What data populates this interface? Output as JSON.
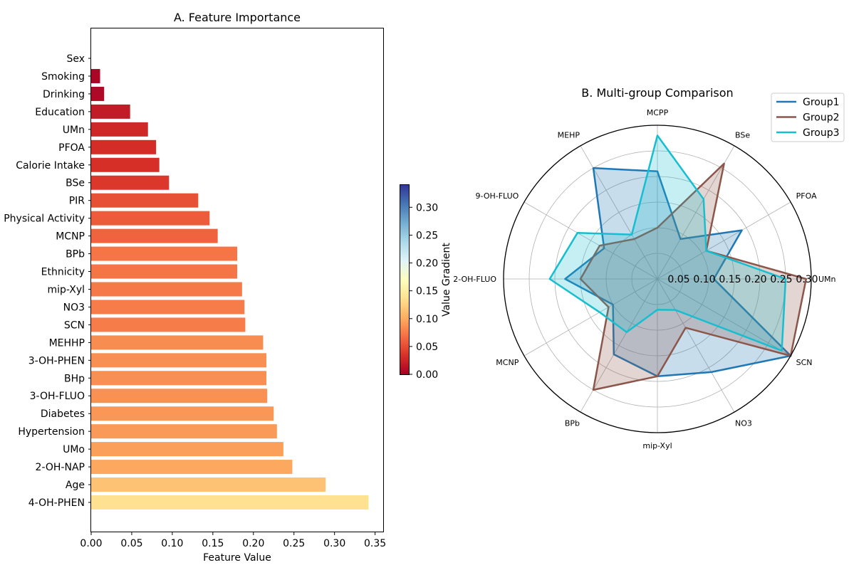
{
  "chart_data": [
    {
      "type": "bar",
      "orientation": "horizontal",
      "title": "A. Feature Importance",
      "xlabel": "Feature Value",
      "ylabel": "",
      "xlim": [
        0,
        0.36
      ],
      "xticks": [
        0.0,
        0.05,
        0.1,
        0.15,
        0.2,
        0.25,
        0.3,
        0.35
      ],
      "xtick_labels": [
        "0.00",
        "0.05",
        "0.10",
        "0.15",
        "0.20",
        "0.25",
        "0.30",
        "0.35"
      ],
      "categories": [
        "Sex",
        "Smoking",
        "Drinking",
        "Education",
        "UMn",
        "PFOA",
        "Calorie Intake",
        "BSe",
        "PIR",
        "Physical Activity",
        "MCNP",
        "BPb",
        "Ethnicity",
        "mip-Xyl",
        "NO3",
        "SCN",
        "MEHHP",
        "3-OH-PHEN",
        "BHp",
        "3-OH-FLUO",
        "Diabetes",
        "Hypertension",
        "UMo",
        "2-OH-NAP",
        "Age",
        "4-OH-PHEN"
      ],
      "values": [
        0.0,
        0.011,
        0.016,
        0.048,
        0.07,
        0.08,
        0.084,
        0.096,
        0.132,
        0.146,
        0.156,
        0.18,
        0.18,
        0.186,
        0.189,
        0.19,
        0.212,
        0.216,
        0.216,
        0.217,
        0.225,
        0.229,
        0.237,
        0.248,
        0.289,
        0.342
      ],
      "colorbar": {
        "label": "Value Gradient",
        "range": [
          0,
          0.34
        ],
        "colormap": "RdYlBu",
        "ticks": [
          "0.00",
          "0.05",
          "0.10",
          "0.15",
          "0.20",
          "0.25",
          "0.30"
        ],
        "tick_values": [
          0,
          0.05,
          0.1,
          0.15,
          0.2,
          0.25,
          0.3
        ]
      }
    },
    {
      "type": "radar",
      "title": "B. Multi-group Comparison",
      "axes": [
        "UMn",
        "PFOA",
        "BSe",
        "MCPP",
        "MEHP",
        "9-OH-FLUO",
        "2-OH-FLUO",
        "MCNP",
        "BPb",
        "mip-Xyl",
        "NO3",
        "SCN"
      ],
      "rmax": 0.3,
      "rticks": [
        "0.05",
        "0.10",
        "0.15",
        "0.20",
        "0.25",
        "0.30"
      ],
      "rtick_values": [
        0.05,
        0.1,
        0.15,
        0.2,
        0.25,
        0.3
      ],
      "series": [
        {
          "name": "Group1",
          "color": "#1f77b4",
          "values": [
            0.11,
            0.19,
            0.09,
            0.21,
            0.25,
            0.12,
            0.18,
            0.1,
            0.17,
            0.19,
            0.21,
            0.3
          ]
        },
        {
          "name": "Group2",
          "color": "#8c564b",
          "values": [
            0.29,
            0.11,
            0.26,
            0.1,
            0.09,
            0.13,
            0.15,
            0.11,
            0.25,
            0.19,
            0.11,
            0.3
          ]
        },
        {
          "name": "Group3",
          "color": "#17becf",
          "values": [
            0.25,
            0.11,
            0.18,
            0.28,
            0.1,
            0.18,
            0.21,
            0.13,
            0.12,
            0.06,
            0.07,
            0.28
          ]
        }
      ],
      "legend_position": "upper-right"
    }
  ]
}
